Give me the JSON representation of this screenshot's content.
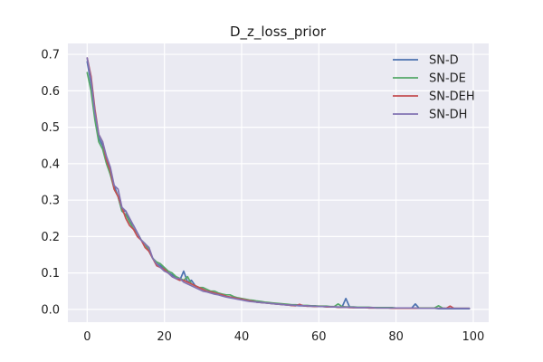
{
  "chart_data": {
    "type": "line",
    "title": "D_z_loss_prior",
    "xlabel": "",
    "ylabel": "",
    "xlim": [
      -5,
      104
    ],
    "ylim": [
      -0.035,
      0.73
    ],
    "xticks": [
      0,
      20,
      40,
      60,
      80,
      100
    ],
    "yticks": [
      0.0,
      0.1,
      0.2,
      0.3,
      0.4,
      0.5,
      0.6,
      0.7
    ],
    "xtick_labels": [
      "0",
      "20",
      "40",
      "60",
      "80",
      "100"
    ],
    "ytick_labels": [
      "0.0",
      "0.1",
      "0.2",
      "0.3",
      "0.4",
      "0.5",
      "0.6",
      "0.7"
    ],
    "grid": true,
    "background": "#EAEAF2",
    "legend_position": "top-right",
    "x": [
      0,
      1,
      2,
      3,
      4,
      5,
      6,
      7,
      8,
      9,
      10,
      11,
      12,
      13,
      14,
      15,
      16,
      17,
      18,
      19,
      20,
      21,
      22,
      23,
      24,
      25,
      26,
      27,
      28,
      29,
      30,
      31,
      32,
      33,
      34,
      35,
      36,
      37,
      38,
      39,
      40,
      41,
      42,
      43,
      44,
      45,
      46,
      47,
      48,
      49,
      50,
      51,
      52,
      53,
      54,
      55,
      56,
      57,
      58,
      59,
      60,
      61,
      62,
      63,
      64,
      65,
      66,
      67,
      68,
      69,
      70,
      71,
      72,
      73,
      74,
      75,
      76,
      77,
      78,
      79,
      80,
      81,
      82,
      83,
      84,
      85,
      86,
      87,
      88,
      89,
      90,
      91,
      92,
      93,
      94,
      95,
      96,
      97,
      98,
      99
    ],
    "series": [
      {
        "name": "SN-D",
        "color": "#4C72B0",
        "values": [
          0.68,
          0.62,
          0.53,
          0.47,
          0.45,
          0.41,
          0.37,
          0.34,
          0.31,
          0.27,
          0.27,
          0.24,
          0.23,
          0.21,
          0.19,
          0.18,
          0.16,
          0.14,
          0.125,
          0.12,
          0.11,
          0.1,
          0.095,
          0.085,
          0.08,
          0.105,
          0.075,
          0.08,
          0.065,
          0.06,
          0.055,
          0.05,
          0.048,
          0.045,
          0.042,
          0.04,
          0.035,
          0.034,
          0.032,
          0.03,
          0.028,
          0.026,
          0.024,
          0.022,
          0.02,
          0.019,
          0.018,
          0.017,
          0.016,
          0.015,
          0.014,
          0.013,
          0.012,
          0.011,
          0.011,
          0.01,
          0.01,
          0.009,
          0.009,
          0.008,
          0.008,
          0.008,
          0.007,
          0.007,
          0.007,
          0.006,
          0.006,
          0.03,
          0.006,
          0.005,
          0.005,
          0.005,
          0.005,
          0.004,
          0.004,
          0.004,
          0.004,
          0.004,
          0.004,
          0.003,
          0.003,
          0.003,
          0.003,
          0.003,
          0.003,
          0.015,
          0.003,
          0.003,
          0.003,
          0.003,
          0.003,
          0.002,
          0.002,
          0.002,
          0.002,
          0.002,
          0.002,
          0.002,
          0.002,
          0.002
        ]
      },
      {
        "name": "SN-DE",
        "color": "#55A868",
        "values": [
          0.65,
          0.6,
          0.52,
          0.46,
          0.44,
          0.4,
          0.37,
          0.33,
          0.31,
          0.27,
          0.26,
          0.24,
          0.22,
          0.21,
          0.19,
          0.18,
          0.16,
          0.14,
          0.13,
          0.125,
          0.115,
          0.105,
          0.1,
          0.09,
          0.085,
          0.08,
          0.09,
          0.07,
          0.065,
          0.06,
          0.06,
          0.055,
          0.05,
          0.05,
          0.045,
          0.042,
          0.04,
          0.04,
          0.035,
          0.032,
          0.03,
          0.028,
          0.026,
          0.025,
          0.023,
          0.022,
          0.02,
          0.019,
          0.018,
          0.017,
          0.016,
          0.015,
          0.014,
          0.013,
          0.013,
          0.012,
          0.011,
          0.011,
          0.01,
          0.01,
          0.009,
          0.009,
          0.009,
          0.008,
          0.008,
          0.015,
          0.008,
          0.007,
          0.007,
          0.007,
          0.006,
          0.006,
          0.006,
          0.006,
          0.005,
          0.005,
          0.005,
          0.005,
          0.005,
          0.005,
          0.004,
          0.004,
          0.004,
          0.004,
          0.004,
          0.004,
          0.004,
          0.004,
          0.004,
          0.004,
          0.004,
          0.01,
          0.004,
          0.003,
          0.003,
          0.003,
          0.003,
          0.003,
          0.003,
          0.003
        ]
      },
      {
        "name": "SN-DEH",
        "color": "#C44E52",
        "values": [
          0.69,
          0.64,
          0.55,
          0.48,
          0.46,
          0.41,
          0.38,
          0.33,
          0.31,
          0.28,
          0.25,
          0.23,
          0.22,
          0.2,
          0.19,
          0.17,
          0.16,
          0.14,
          0.12,
          0.115,
          0.11,
          0.1,
          0.09,
          0.085,
          0.08,
          0.08,
          0.075,
          0.07,
          0.065,
          0.06,
          0.055,
          0.05,
          0.048,
          0.045,
          0.042,
          0.04,
          0.036,
          0.034,
          0.032,
          0.03,
          0.028,
          0.026,
          0.024,
          0.022,
          0.02,
          0.019,
          0.018,
          0.017,
          0.016,
          0.015,
          0.014,
          0.013,
          0.012,
          0.011,
          0.01,
          0.014,
          0.01,
          0.009,
          0.009,
          0.008,
          0.008,
          0.008,
          0.007,
          0.007,
          0.007,
          0.006,
          0.006,
          0.006,
          0.005,
          0.005,
          0.005,
          0.005,
          0.005,
          0.004,
          0.004,
          0.004,
          0.004,
          0.004,
          0.004,
          0.003,
          0.003,
          0.003,
          0.003,
          0.003,
          0.003,
          0.003,
          0.003,
          0.003,
          0.003,
          0.003,
          0.003,
          0.003,
          0.003,
          0.003,
          0.009,
          0.003,
          0.003,
          0.003,
          0.003,
          0.003
        ]
      },
      {
        "name": "SN-DH",
        "color": "#8172B2",
        "values": [
          0.69,
          0.63,
          0.54,
          0.48,
          0.46,
          0.42,
          0.39,
          0.34,
          0.33,
          0.28,
          0.27,
          0.25,
          0.23,
          0.21,
          0.19,
          0.18,
          0.17,
          0.14,
          0.125,
          0.115,
          0.105,
          0.1,
          0.09,
          0.085,
          0.085,
          0.075,
          0.07,
          0.065,
          0.06,
          0.055,
          0.05,
          0.048,
          0.045,
          0.042,
          0.04,
          0.037,
          0.034,
          0.032,
          0.03,
          0.028,
          0.026,
          0.024,
          0.022,
          0.021,
          0.02,
          0.019,
          0.018,
          0.017,
          0.016,
          0.015,
          0.014,
          0.013,
          0.012,
          0.012,
          0.011,
          0.011,
          0.01,
          0.01,
          0.009,
          0.009,
          0.008,
          0.008,
          0.008,
          0.007,
          0.007,
          0.007,
          0.006,
          0.006,
          0.006,
          0.006,
          0.005,
          0.005,
          0.005,
          0.005,
          0.005,
          0.004,
          0.004,
          0.004,
          0.004,
          0.004,
          0.004,
          0.004,
          0.004,
          0.004,
          0.004,
          0.004,
          0.003,
          0.003,
          0.003,
          0.003,
          0.003,
          0.003,
          0.003,
          0.003,
          0.003,
          0.003,
          0.003,
          0.003,
          0.003,
          0.003
        ]
      }
    ]
  }
}
